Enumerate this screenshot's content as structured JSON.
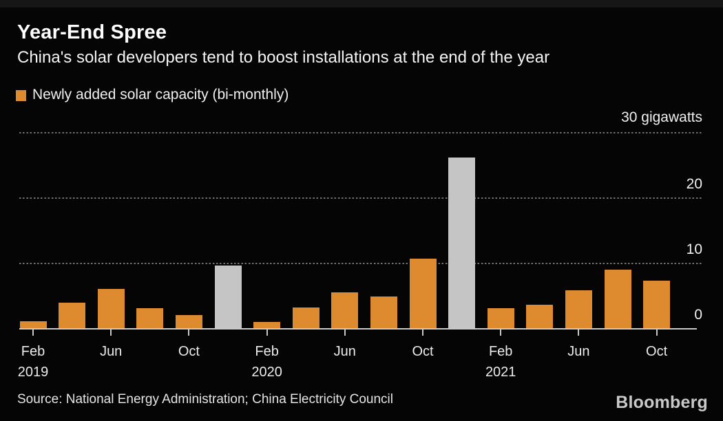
{
  "header": {
    "title": "Year-End Spree",
    "subtitle": "China's solar developers tend to boost installations at the end of the year"
  },
  "legend": {
    "label": "Newly added solar capacity (bi-monthly)"
  },
  "footer": {
    "source": "Source: National Energy Administration; China Electricity Council",
    "brand": "Bloomberg"
  },
  "chart_data": {
    "type": "bar",
    "title": "Year-End Spree",
    "subtitle": "China's solar developers tend to boost installations at the end of the year",
    "legend_entries": [
      "Newly added solar capacity (bi-monthly)"
    ],
    "unit_label": "30 gigawatts",
    "ylabel": "gigawatts",
    "ylim": [
      0,
      30
    ],
    "grid": "dotted-horizontal",
    "grid_values": [
      30,
      20,
      10
    ],
    "categories": [
      "Feb 2019",
      "Apr 2019",
      "Jun 2019",
      "Aug 2019",
      "Oct 2019",
      "Dec 2019",
      "Feb 2020",
      "Apr 2020",
      "Jun 2020",
      "Aug 2020",
      "Oct 2020",
      "Dec 2020",
      "Feb 2021",
      "Apr 2021",
      "Jun 2021",
      "Aug 2021",
      "Oct 2021"
    ],
    "values": [
      1.2,
      4.0,
      6.1,
      3.2,
      2.1,
      9.7,
      1.0,
      3.3,
      5.6,
      4.9,
      10.7,
      26.2,
      3.2,
      3.7,
      5.9,
      9.0,
      7.4
    ],
    "highlight_indexes": [
      5,
      11
    ],
    "y_ticks": [
      {
        "value": 20,
        "label": "20"
      },
      {
        "value": 10,
        "label": "10"
      },
      {
        "value": 0,
        "label": "0"
      }
    ],
    "x_ticks": [
      {
        "month": "Feb",
        "year": "2019",
        "index": 0
      },
      {
        "month": "Jun",
        "year": "",
        "index": 2
      },
      {
        "month": "Oct",
        "year": "",
        "index": 4
      },
      {
        "month": "Feb",
        "year": "2020",
        "index": 6
      },
      {
        "month": "Jun",
        "year": "",
        "index": 8
      },
      {
        "month": "Oct",
        "year": "",
        "index": 10
      },
      {
        "month": "Feb",
        "year": "2021",
        "index": 12
      },
      {
        "month": "Jun",
        "year": "",
        "index": 14
      },
      {
        "month": "Oct",
        "year": "",
        "index": 16
      }
    ],
    "colors": {
      "bar": "#dd8b2e",
      "highlight_bar": "#c5c5c5",
      "background": "#050505",
      "grid": "#6f6f6f",
      "axis": "#c9c9c9",
      "text": "#f0f0f0",
      "logo": "#c9c9c9"
    },
    "legend_position": "top-left",
    "axis_labels_position": "right"
  }
}
